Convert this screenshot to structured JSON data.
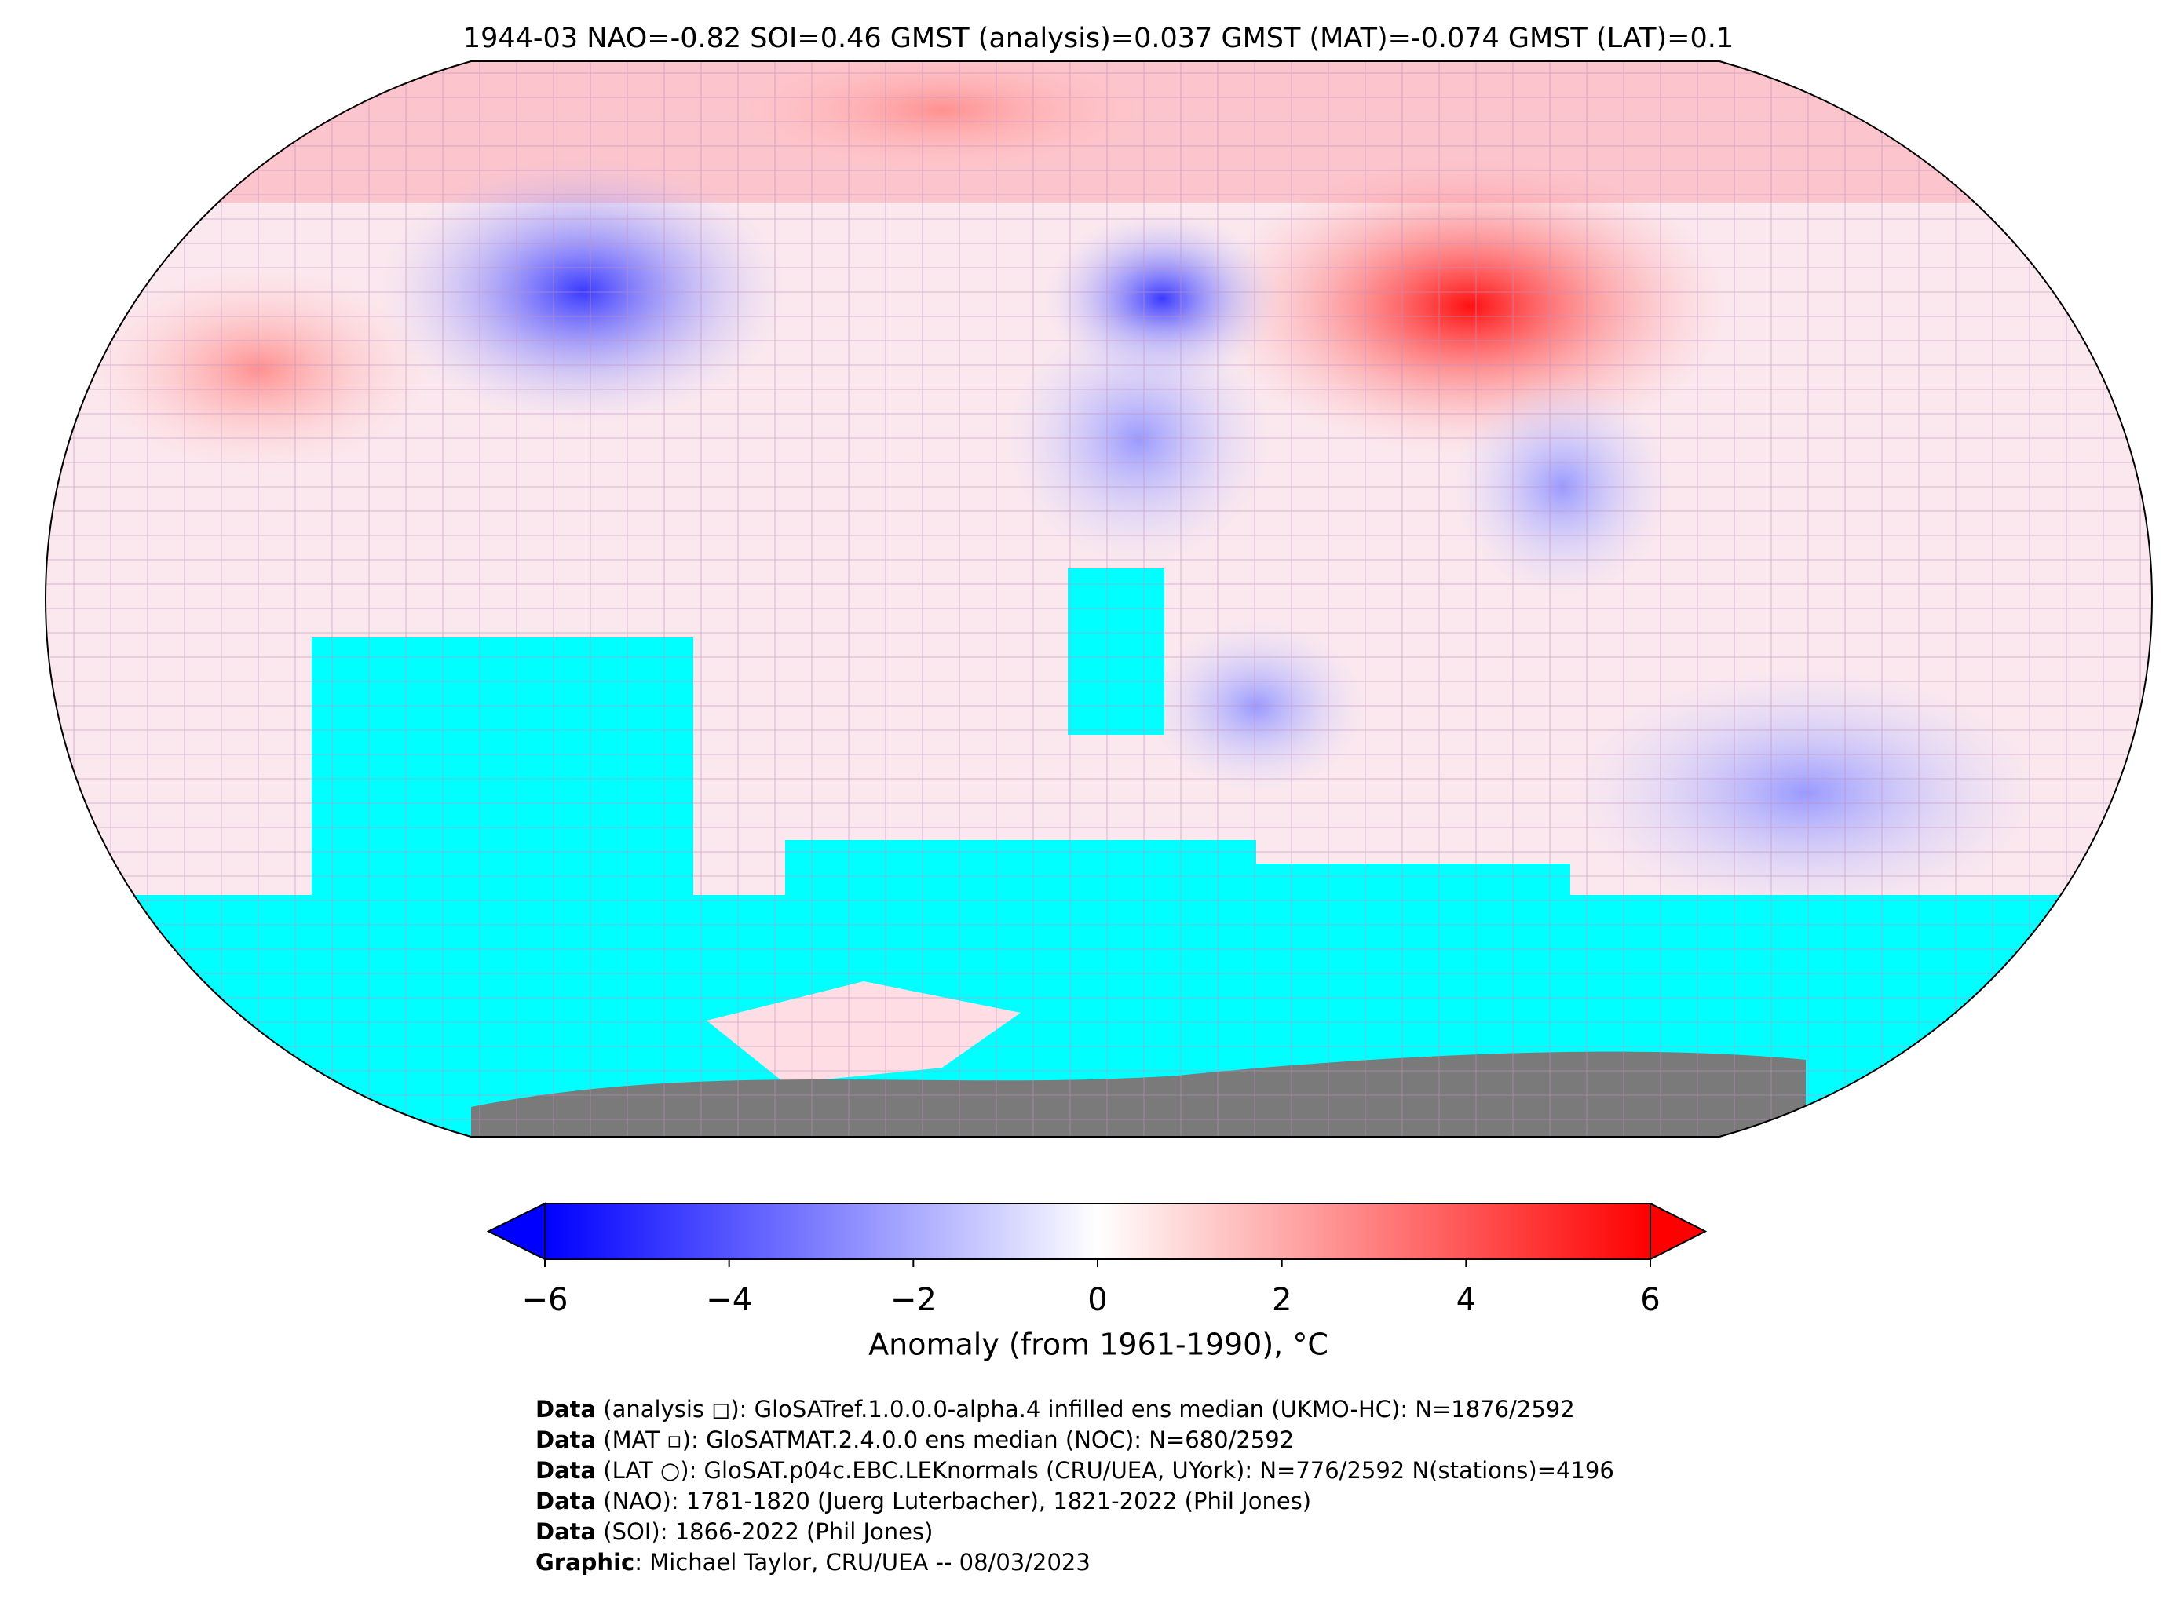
{
  "title": "1944-03 NAO=-0.82 SOI=0.46 GMST (analysis)=0.037 GMST (MAT)=-0.074 GMST (LAT)=0.1",
  "colorbar": {
    "label": "Anomaly (from 1961-1990), °C",
    "range": [
      -6,
      6
    ],
    "ticks": [
      {
        "value": -6,
        "label": "−6"
      },
      {
        "value": -4,
        "label": "−4"
      },
      {
        "value": -2,
        "label": "−2"
      },
      0,
      2,
      4,
      6
    ],
    "colormap": [
      "#0000ff",
      "#ffffff",
      "#ff0000"
    ]
  },
  "credits": [
    {
      "label": "Data",
      "text": " (analysis ◻): GloSATref.1.0.0.0-alpha.4 infilled ens median (UKMO-HC): N=1876/2592"
    },
    {
      "label": "Data",
      "text": " (MAT ▫): GloSATMAT.2.4.0.0 ens median (NOC): N=680/2592"
    },
    {
      "label": "Data",
      "text": " (LAT ○): GloSAT.p04c.EBC.LEKnormals (CRU/UEA, UYork): N=776/2592 N(stations)=4196"
    },
    {
      "label": "Data",
      "text": " (NAO): 1781-1820 (Juerg Luterbacher), 1821-2022 (Phil Jones)"
    },
    {
      "label": "Data",
      "text": " (SOI): 1866-2022 (Phil Jones)"
    },
    {
      "label": "Graphic",
      "text": ": Michael Taylor, CRU/UEA -- 08/03/2023"
    }
  ]
}
